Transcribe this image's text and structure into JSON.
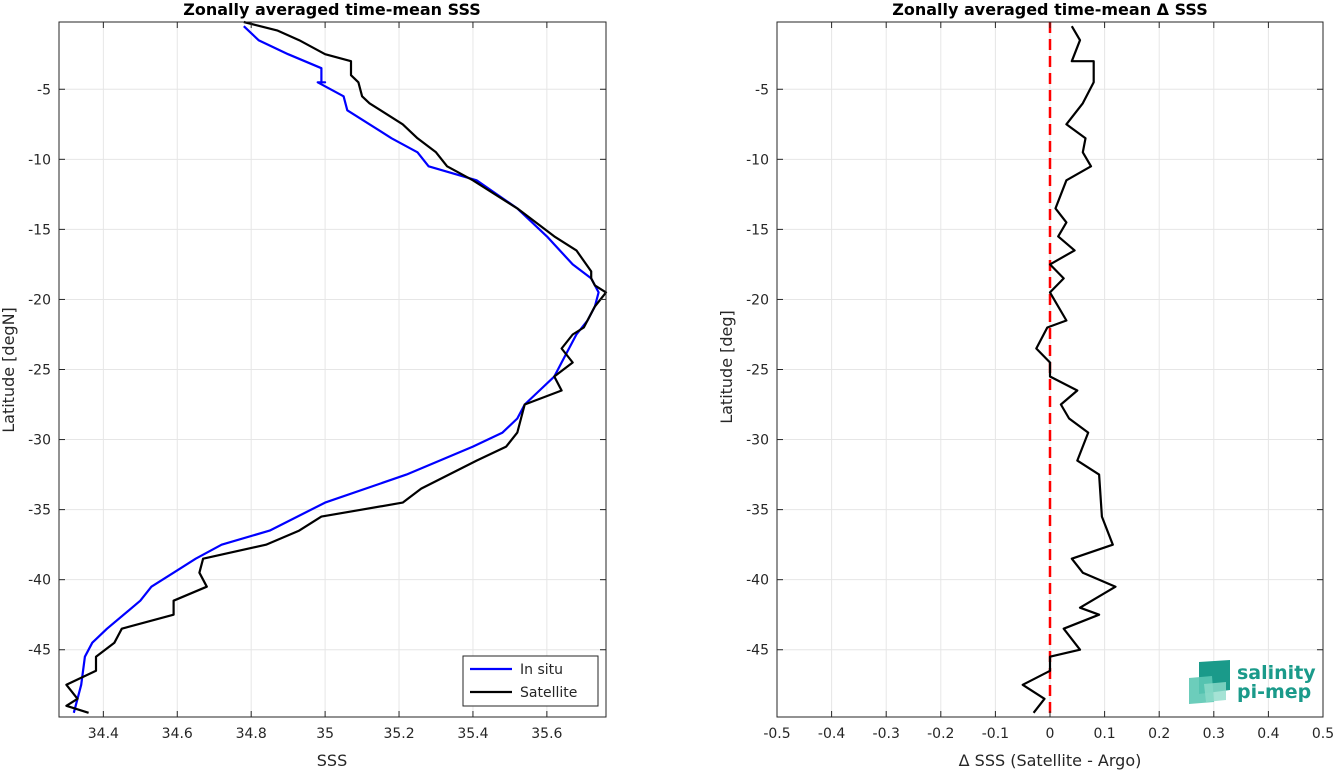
{
  "chart_data": [
    {
      "type": "line",
      "title": "Zonally averaged time-mean SSS",
      "xlabel": "SSS",
      "ylabel": "Latitude [degN]",
      "xlim": [
        34.28,
        35.76
      ],
      "ylim": [
        -49.8,
        -0.2
      ],
      "xticks": [
        34.4,
        34.6,
        34.8,
        35,
        35.2,
        35.4,
        35.6
      ],
      "xticklabels": [
        "34.4",
        "34.6",
        "34.8",
        "35",
        "35.2",
        "35.4",
        "35.6"
      ],
      "yticks": [
        -45,
        -40,
        -35,
        -30,
        -25,
        -20,
        -15,
        -10,
        -5
      ],
      "yticklabels": [
        "-45",
        "-40",
        "-35",
        "-30",
        "-25",
        "-20",
        "-15",
        "-10",
        "-5"
      ],
      "grid": true,
      "legend": "bottom-right",
      "series": [
        {
          "name": "In situ",
          "color": "#0000ff",
          "x": [
            34.78,
            34.82,
            34.9,
            34.99,
            34.99,
            35.0,
            34.98,
            35.05,
            35.06,
            35.12,
            35.18,
            35.25,
            35.28,
            35.41,
            35.52,
            35.6,
            35.67,
            35.72,
            35.74,
            35.73,
            35.71,
            35.68,
            35.66,
            35.64,
            35.62,
            35.58,
            35.54,
            35.52,
            35.48,
            35.4,
            35.22,
            35.0,
            34.85,
            34.72,
            34.65,
            34.59,
            34.53,
            34.5,
            34.41,
            34.37,
            34.35,
            34.34,
            34.33,
            34.32
          ],
          "y": [
            -0.5,
            -1.5,
            -2.5,
            -3.5,
            -4.5,
            -4.5,
            -4.5,
            -5.5,
            -6.5,
            -7.5,
            -8.5,
            -9.5,
            -10.5,
            -11.5,
            -13.5,
            -15.5,
            -17.5,
            -18.5,
            -19.5,
            -20.5,
            -21.5,
            -22.5,
            -23.5,
            -24.5,
            -25.5,
            -26.5,
            -27.5,
            -28.5,
            -29.5,
            -30.5,
            -32.5,
            -34.5,
            -36.5,
            -37.5,
            -38.5,
            -39.5,
            -40.5,
            -41.5,
            -43.5,
            -44.5,
            -45.5,
            -47.5,
            -48.5,
            -49.5
          ]
        },
        {
          "name": "Satellite",
          "color": "#000000",
          "x": [
            34.78,
            34.87,
            34.93,
            35.0,
            35.07,
            35.07,
            35.09,
            35.1,
            35.12,
            35.21,
            35.25,
            35.3,
            35.33,
            35.4,
            35.52,
            35.62,
            35.68,
            35.72,
            35.72,
            35.73,
            35.76,
            35.73,
            35.7,
            35.67,
            35.64,
            35.67,
            35.62,
            35.64,
            35.54,
            35.53,
            35.52,
            35.49,
            35.41,
            35.26,
            35.21,
            34.99,
            34.93,
            34.84,
            34.67,
            34.66,
            34.68,
            34.59,
            34.59,
            34.45,
            34.43,
            34.38,
            34.38,
            34.3,
            34.33,
            34.3,
            34.36
          ],
          "y": [
            -0.2,
            -0.8,
            -1.5,
            -2.5,
            -3.0,
            -4.0,
            -4.5,
            -5.5,
            -6.0,
            -7.5,
            -8.5,
            -9.5,
            -10.5,
            -11.5,
            -13.5,
            -15.5,
            -16.5,
            -18.0,
            -18.5,
            -19.0,
            -19.5,
            -20.5,
            -22.0,
            -22.5,
            -23.5,
            -24.5,
            -25.5,
            -26.5,
            -27.5,
            -28.5,
            -29.5,
            -30.5,
            -31.5,
            -33.5,
            -34.5,
            -35.5,
            -36.5,
            -37.5,
            -38.5,
            -39.5,
            -40.5,
            -41.5,
            -42.5,
            -43.5,
            -44.5,
            -45.5,
            -46.5,
            -47.5,
            -48.5,
            -49.0,
            -49.5
          ]
        }
      ]
    },
    {
      "type": "line",
      "title": "Zonally averaged time-mean Δ SSS",
      "xlabel": "Δ SSS (Satellite - Argo)",
      "ylabel": "Latitude [deg]",
      "xlim": [
        -0.5,
        0.5
      ],
      "ylim": [
        -49.8,
        -0.2
      ],
      "xticks": [
        -0.5,
        -0.4,
        -0.3,
        -0.2,
        -0.1,
        0,
        0.1,
        0.2,
        0.3,
        0.4,
        0.5
      ],
      "xticklabels": [
        "-0.5",
        "-0.4",
        "-0.3",
        "-0.2",
        "-0.1",
        "0",
        "0.1",
        "0.2",
        "0.3",
        "0.4",
        "0.5"
      ],
      "yticks": [
        -45,
        -40,
        -35,
        -30,
        -25,
        -20,
        -15,
        -10,
        -5
      ],
      "yticklabels": [
        "-45",
        "-40",
        "-35",
        "-30",
        "-25",
        "-20",
        "-15",
        "-10",
        "-5"
      ],
      "grid": true,
      "reference_line": {
        "x": 0,
        "color": "#ff0000",
        "style": "dashed"
      },
      "series": [
        {
          "color": "#000000",
          "x": [
            0.04,
            0.055,
            0.04,
            0.08,
            0.08,
            0.06,
            0.03,
            0.065,
            0.06,
            0.075,
            0.03,
            0.01,
            0.03,
            0.015,
            0.045,
            0.0,
            0.025,
            0.0,
            0.03,
            -0.005,
            -0.025,
            0.0,
            0.0,
            0.05,
            0.02,
            0.035,
            0.07,
            0.05,
            0.09,
            0.095,
            0.115,
            0.04,
            0.06,
            0.12,
            0.055,
            0.09,
            0.025,
            0.055,
            0.0,
            0.0,
            -0.05,
            -0.01,
            -0.03
          ],
          "y": [
            -0.5,
            -1.5,
            -3.0,
            -3.0,
            -4.5,
            -6.0,
            -7.5,
            -8.5,
            -9.5,
            -10.5,
            -11.5,
            -13.5,
            -14.5,
            -15.5,
            -16.5,
            -17.5,
            -18.5,
            -19.5,
            -21.5,
            -22.0,
            -23.5,
            -24.5,
            -25.5,
            -26.5,
            -27.5,
            -28.5,
            -29.5,
            -31.5,
            -32.5,
            -35.5,
            -37.5,
            -38.5,
            -39.5,
            -40.5,
            -42.0,
            -42.5,
            -43.5,
            -45.0,
            -45.5,
            -46.5,
            -47.5,
            -48.5,
            -49.5
          ]
        }
      ]
    }
  ],
  "legend": {
    "items": [
      {
        "label": "In situ",
        "color": "#0000ff"
      },
      {
        "label": "Satellite",
        "color": "#000000"
      }
    ]
  },
  "logo": {
    "line1": "salinity",
    "line2": "pi-mep",
    "color": "#1a9a8a"
  }
}
